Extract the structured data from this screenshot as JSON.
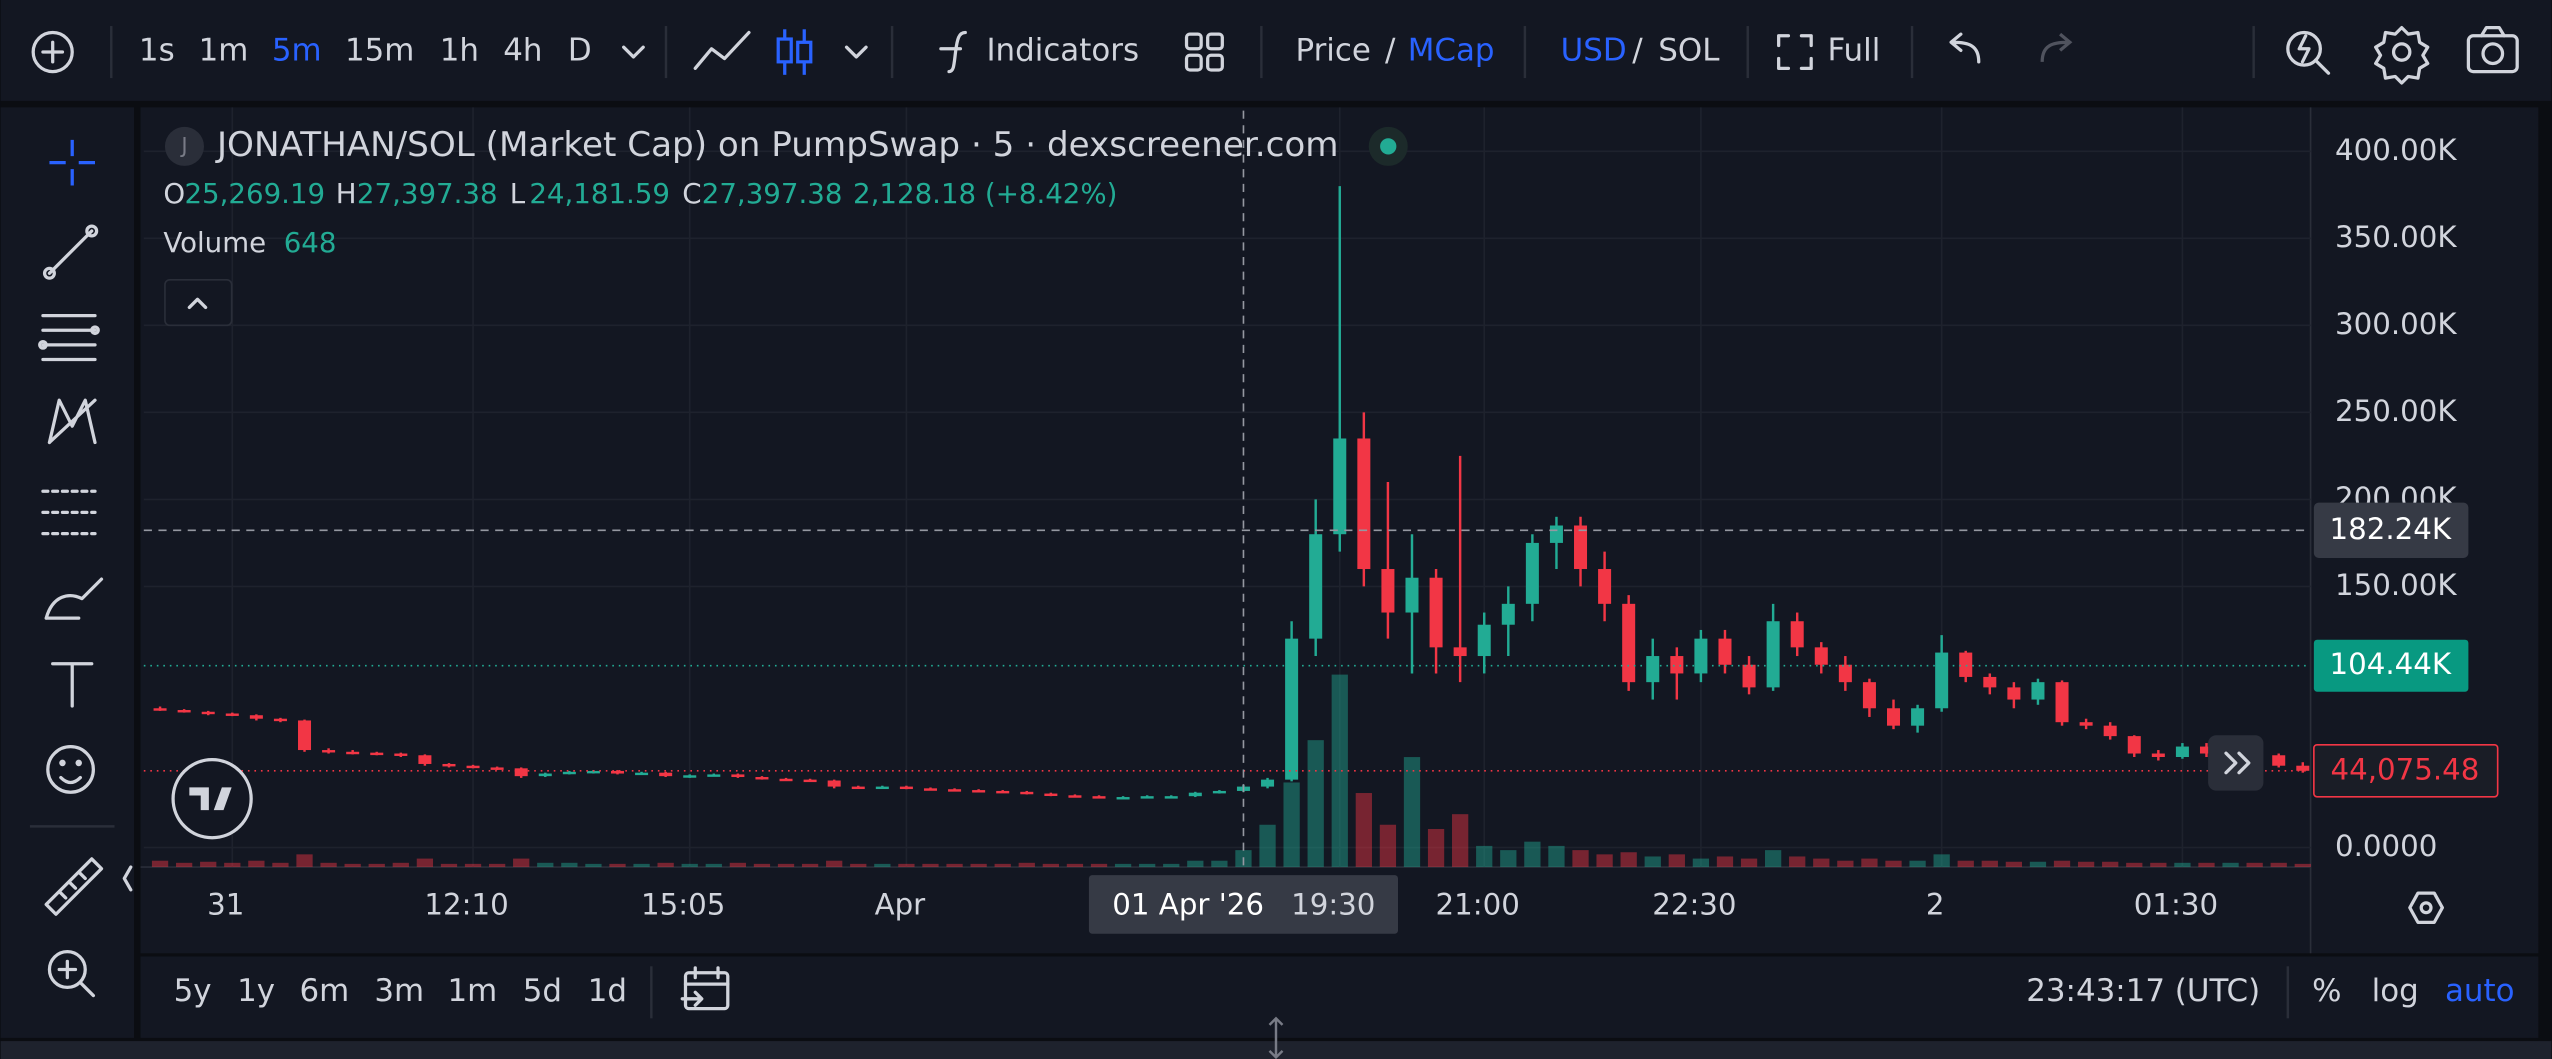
{
  "toolbar": {
    "intervals": [
      "1s",
      "1m",
      "5m",
      "15m",
      "1h",
      "4h",
      "D"
    ],
    "indicators": "Indicators",
    "price": "Price",
    "separator": "/",
    "mcap": "MCap",
    "usd": "USD",
    "sol": "SOL",
    "full": "Full"
  },
  "legend": {
    "initial": "J",
    "title": "JONATHAN/SOL (Market Cap) on PumpSwap · 5 · dexscreener.com",
    "ohlc": [
      {
        "key": "O",
        "value": "25,269.19"
      },
      {
        "key": "H",
        "value": "27,397.38"
      },
      {
        "key": "L",
        "value": "24,181.59"
      },
      {
        "key": "C",
        "value": "27,397.38"
      }
    ],
    "change": "2,128.18 (+8.42%)",
    "volume_label": "Volume",
    "volume_value": "648"
  },
  "chart_data": {
    "type": "candlestick",
    "up_color": "#22ab94",
    "down_color": "#f23645",
    "grid": true,
    "ylim": [
      -11220,
      423360
    ],
    "yticks": [
      {
        "value": 0,
        "label": "0.0000"
      },
      {
        "value": 150000,
        "label": "150.00K"
      },
      {
        "value": 200000,
        "label": "200.00K"
      },
      {
        "value": 250000,
        "label": "250.00K"
      },
      {
        "value": 300000,
        "label": "300.00K"
      },
      {
        "value": 350000,
        "label": "350.00K"
      },
      {
        "value": 400000,
        "label": "400.00K"
      }
    ],
    "categories": [
      null,
      null,
      null,
      "31",
      null,
      null,
      null,
      null,
      null,
      null,
      null,
      null,
      null,
      "12:10",
      null,
      null,
      null,
      null,
      null,
      null,
      null,
      null,
      "15:05",
      null,
      null,
      null,
      null,
      null,
      null,
      null,
      null,
      "Apr",
      null,
      null,
      null,
      null,
      null,
      null,
      null,
      null,
      null,
      null,
      null,
      null,
      null,
      null,
      null,
      null,
      null,
      "19:30",
      null,
      null,
      null,
      null,
      null,
      "21:00",
      null,
      null,
      null,
      null,
      null,
      null,
      null,
      null,
      "22:30",
      null,
      null,
      null,
      null,
      null,
      null,
      null,
      null,
      null,
      "2",
      null,
      null,
      null,
      null,
      null,
      null,
      null,
      null,
      null,
      "01:30",
      null,
      null,
      null,
      null,
      null
    ],
    "ohlc": [
      [
        80000,
        81000,
        78500,
        79000
      ],
      [
        79000,
        79500,
        77500,
        78000
      ],
      [
        78000,
        78500,
        76000,
        77000
      ],
      [
        77000,
        77500,
        75500,
        76000
      ],
      [
        76000,
        76500,
        73000,
        74000
      ],
      [
        74000,
        74500,
        72000,
        73000
      ],
      [
        73000,
        73500,
        55000,
        56000
      ],
      [
        56000,
        57000,
        54000,
        55000
      ],
      [
        55000,
        56000,
        53500,
        54500
      ],
      [
        54500,
        55000,
        53000,
        54000
      ],
      [
        54000,
        54500,
        52000,
        53000
      ],
      [
        53000,
        53500,
        47000,
        48000
      ],
      [
        48000,
        48500,
        46000,
        47000
      ],
      [
        47000,
        47500,
        45500,
        46000
      ],
      [
        46000,
        46500,
        44500,
        45500
      ],
      [
        45500,
        46000,
        40000,
        41000
      ],
      [
        41000,
        43000,
        40500,
        42500
      ],
      [
        42500,
        44000,
        42000,
        43500
      ],
      [
        43500,
        44500,
        42500,
        44000
      ],
      [
        44000,
        44500,
        42000,
        42500
      ],
      [
        42500,
        43500,
        42000,
        43000
      ],
      [
        43000,
        43500,
        40500,
        41000
      ],
      [
        41000,
        42000,
        40000,
        41500
      ],
      [
        41500,
        42500,
        41000,
        42000
      ],
      [
        42000,
        42500,
        40000,
        40500
      ],
      [
        40500,
        41000,
        39000,
        39500
      ],
      [
        39500,
        40000,
        38500,
        39000
      ],
      [
        39000,
        39500,
        38000,
        38500
      ],
      [
        38500,
        39000,
        34000,
        35000
      ],
      [
        35000,
        35500,
        34000,
        34500
      ],
      [
        34500,
        35500,
        34000,
        35000
      ],
      [
        35000,
        35500,
        33500,
        34000
      ],
      [
        34000,
        34500,
        33000,
        33500
      ],
      [
        33500,
        34000,
        32500,
        33000
      ],
      [
        33000,
        33500,
        32000,
        32500
      ],
      [
        32500,
        33000,
        31500,
        32000
      ],
      [
        32000,
        32500,
        30500,
        31000
      ],
      [
        31000,
        31500,
        29500,
        30000
      ],
      [
        30000,
        30500,
        29000,
        29500
      ],
      [
        29500,
        30000,
        28500,
        29000
      ],
      [
        29000,
        29500,
        28500,
        29000
      ],
      [
        29000,
        30000,
        28500,
        29500
      ],
      [
        29500,
        30000,
        29000,
        29500
      ],
      [
        29500,
        32000,
        29000,
        31500
      ],
      [
        31500,
        33000,
        31000,
        32500
      ],
      [
        32500,
        36000,
        32000,
        35000
      ],
      [
        35000,
        40000,
        34000,
        39000
      ],
      [
        39000,
        130000,
        38000,
        120000
      ],
      [
        120000,
        200000,
        110000,
        180000
      ],
      [
        180000,
        380000,
        170000,
        235000
      ],
      [
        235000,
        250000,
        150000,
        160000
      ],
      [
        160000,
        210000,
        120000,
        135000
      ],
      [
        135000,
        180000,
        100000,
        155000
      ],
      [
        155000,
        160000,
        100000,
        115000
      ],
      [
        115000,
        225000,
        95000,
        110000
      ],
      [
        110000,
        135000,
        100000,
        128000
      ],
      [
        128000,
        150000,
        110000,
        140000
      ],
      [
        140000,
        180000,
        130000,
        175000
      ],
      [
        175000,
        190000,
        160000,
        185000
      ],
      [
        185000,
        190000,
        150000,
        160000
      ],
      [
        160000,
        170000,
        130000,
        140000
      ],
      [
        140000,
        145000,
        90000,
        95000
      ],
      [
        95000,
        120000,
        85000,
        110000
      ],
      [
        110000,
        115000,
        85000,
        100000
      ],
      [
        100000,
        125000,
        95000,
        120000
      ],
      [
        120000,
        125000,
        100000,
        105000
      ],
      [
        105000,
        110000,
        88000,
        92000
      ],
      [
        92000,
        140000,
        90000,
        130000
      ],
      [
        130000,
        135000,
        110000,
        115000
      ],
      [
        115000,
        118000,
        100000,
        105000
      ],
      [
        105000,
        110000,
        90000,
        95000
      ],
      [
        95000,
        97000,
        75000,
        80000
      ],
      [
        80000,
        85000,
        68000,
        70000
      ],
      [
        70000,
        82000,
        66000,
        80000
      ],
      [
        80000,
        122000,
        78000,
        112000
      ],
      [
        112000,
        113000,
        95000,
        98000
      ],
      [
        98000,
        100000,
        88000,
        92000
      ],
      [
        92000,
        95000,
        80000,
        85000
      ],
      [
        85000,
        97000,
        82000,
        95000
      ],
      [
        95000,
        96000,
        70000,
        72000
      ],
      [
        72000,
        74000,
        68000,
        70000
      ],
      [
        70000,
        72000,
        62000,
        64000
      ],
      [
        64000,
        64500,
        52000,
        54000
      ],
      [
        54000,
        56000,
        50000,
        52000
      ],
      [
        52000,
        60000,
        51000,
        58000
      ],
      [
        58000,
        60000,
        52000,
        54000
      ],
      [
        54000,
        57000,
        50000,
        56000
      ],
      [
        56000,
        58000,
        52000,
        53000
      ],
      [
        53000,
        54000,
        46000,
        47000
      ],
      [
        47000,
        49000,
        43000,
        44075.48
      ]
    ],
    "volume_lim": [
      0,
      100000
    ],
    "volumes": [
      3000,
      2000,
      2500,
      2000,
      3000,
      2000,
      6000,
      2000,
      1500,
      1500,
      2000,
      4000,
      1500,
      1500,
      1500,
      4000,
      2000,
      2000,
      1500,
      1500,
      1500,
      2000,
      1500,
      1500,
      2000,
      1500,
      1500,
      1500,
      3000,
      1500,
      1500,
      1500,
      1500,
      1500,
      1500,
      1500,
      2000,
      1500,
      1500,
      1500,
      1500,
      1500,
      1500,
      3000,
      3000,
      8000,
      20000,
      40000,
      60000,
      91000,
      35000,
      20000,
      52000,
      18000,
      25000,
      10000,
      8000,
      12000,
      10000,
      8000,
      6000,
      7000,
      5000,
      6000,
      4000,
      5000,
      4000,
      8000,
      5000,
      4000,
      3000,
      4000,
      3000,
      3000,
      6000,
      3000,
      3000,
      2500,
      2500,
      3000,
      2500,
      2500,
      2000,
      2000,
      2000,
      2000,
      2000,
      2000,
      2000,
      1500
    ],
    "crosshair": {
      "value": 182240,
      "label": "182.24K",
      "time_label": "01 Apr '26"
    },
    "last_line": {
      "value": 104440,
      "label": "104.44K"
    },
    "current": {
      "value": 44075.48,
      "label": "44,075.48"
    }
  },
  "bottom": {
    "ranges": [
      "5y",
      "1y",
      "6m",
      "3m",
      "1m",
      "5d",
      "1d"
    ],
    "clock": "23:43:17 (UTC)",
    "percent": "%",
    "log": "log",
    "auto": "auto"
  }
}
